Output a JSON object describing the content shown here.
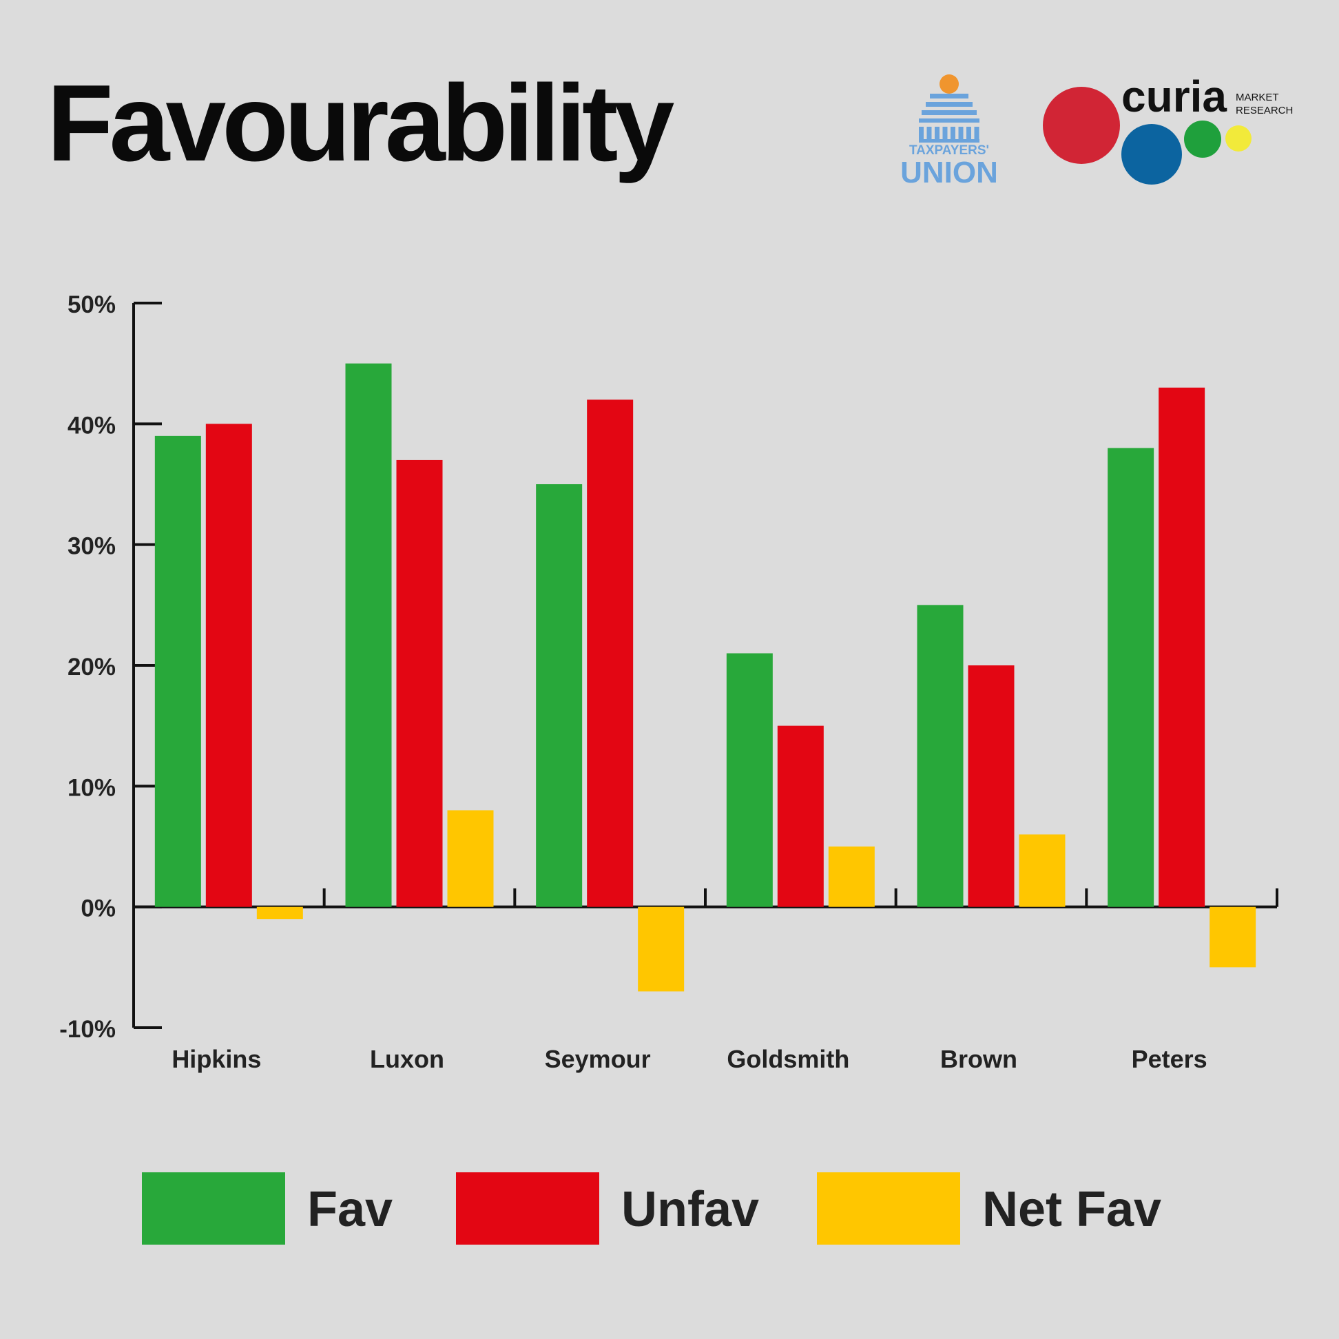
{
  "title": "Favourability",
  "logos": {
    "taxpayers_union": {
      "line1": "TAXPAYERS'",
      "line2": "UNION",
      "color": "#6aa3dc",
      "accent": "#f0952e"
    },
    "curia": {
      "word": "curia",
      "line1": "MARKET",
      "line2": "RESEARCH",
      "dot_colors": [
        "#d12535",
        "#0c64a0",
        "#1fa03c",
        "#f2ea3a"
      ]
    }
  },
  "colors": {
    "Fav": "#28a83a",
    "Unfav": "#e30613",
    "Net Fav": "#ffc600",
    "axis": "#111111",
    "background": "#dcdcdc"
  },
  "chart_data": {
    "type": "bar",
    "categories": [
      "Hipkins",
      "Luxon",
      "Seymour",
      "Goldsmith",
      "Brown",
      "Peters"
    ],
    "series": [
      {
        "name": "Fav",
        "values": [
          39,
          45,
          35,
          21,
          25,
          38
        ]
      },
      {
        "name": "Unfav",
        "values": [
          40,
          37,
          42,
          15,
          20,
          43
        ]
      },
      {
        "name": "Net Fav",
        "values": [
          -1,
          8,
          -7,
          5,
          6,
          -5
        ]
      }
    ],
    "ylim": [
      -10,
      50
    ],
    "yticks": [
      50,
      40,
      30,
      20,
      10,
      0,
      -10
    ],
    "ytick_labels": [
      "50%",
      "40%",
      "30%",
      "20%",
      "10%",
      "0%",
      "-10%"
    ],
    "xlabel": "",
    "ylabel": "",
    "grid": false,
    "legend": "bottom"
  }
}
